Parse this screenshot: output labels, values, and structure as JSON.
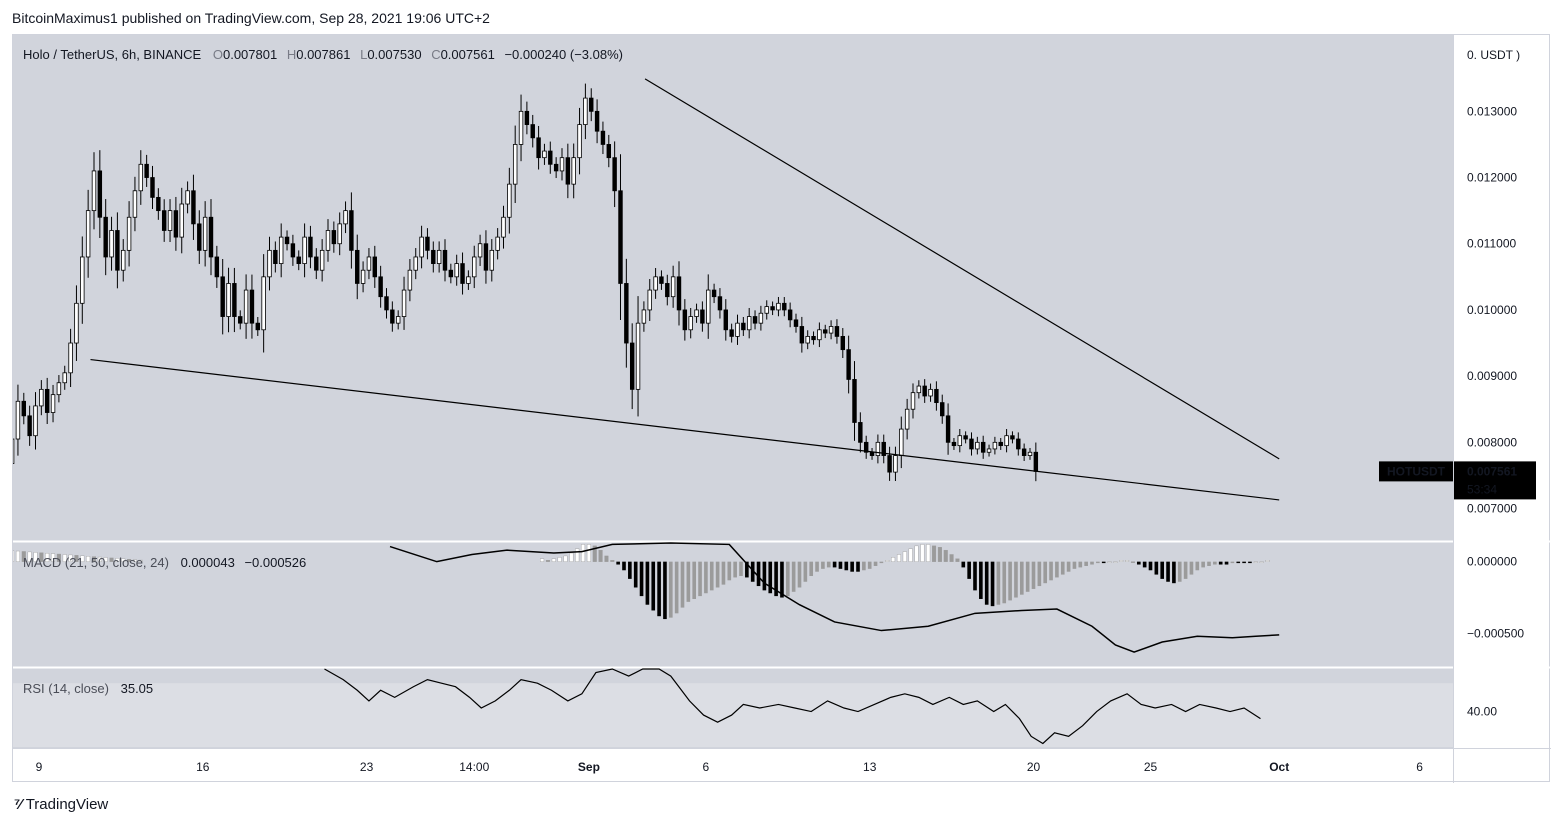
{
  "header": {
    "publisher": "BitcoinMaximus1 published on TradingView.com, Sep 28, 2021 19:06 UTC+2"
  },
  "footer": {
    "brand": "TradingView",
    "logo_icon": "tradingview-logo-icon"
  },
  "colors": {
    "pane_bg": "#d1d4dc",
    "rsi_band": "#dcdee4",
    "up_candle": "#ffffff",
    "down_candle": "#000000",
    "hist_dark": "#000000",
    "hist_light": "#9b9b9b",
    "hist_pale": "#ffffff",
    "line": "#000000",
    "badge_bg": "#000000"
  },
  "chart_data": {
    "type": "candlestick",
    "symbol_label": "Holo / TetherUS, 6h, BINANCE",
    "ohlc_legend": {
      "o_label": "O",
      "o": "0.007801",
      "h_label": "H",
      "h": "0.007861",
      "l_label": "L",
      "l": "0.007530",
      "c_label": "C",
      "c": "0.007561",
      "change": "−0.000240 (−3.08%)"
    },
    "price_axis_unit": "0. USDT )",
    "price_ticks": [
      "0.013000",
      "0.012000",
      "0.011000",
      "0.010000",
      "0.009000",
      "0.008000",
      "0.007000"
    ],
    "price_range": [
      0.0066,
      0.0137
    ],
    "current_price": {
      "ticker": "HOTUSDT",
      "value": "0.007561",
      "countdown": "53:34",
      "price": 0.007561
    },
    "x_labels": [
      "9",
      "16",
      "23",
      "14:00",
      "Sep",
      "6",
      "13",
      "20",
      "25",
      "Oct",
      "6"
    ],
    "x_label_days": [
      0,
      7,
      14,
      18.6,
      23.5,
      28.5,
      35.5,
      42.5,
      47.5,
      53,
      59
    ],
    "bars_per_day": 4,
    "first_bar_day": -1.4,
    "trendlines": [
      {
        "name": "resistance",
        "from": {
          "day": 25.9,
          "price": 0.01349
        },
        "to": {
          "day": 53,
          "price": 0.00775
        }
      },
      {
        "name": "support",
        "from": {
          "day": 2.2,
          "price": 0.00925
        },
        "to": {
          "day": 53,
          "price": 0.00713
        }
      }
    ],
    "closes": [
      0.00768,
      0.00805,
      0.00862,
      0.0084,
      0.0081,
      0.00855,
      0.0088,
      0.00845,
      0.00872,
      0.0089,
      0.00905,
      0.0095,
      0.0101,
      0.0108,
      0.0115,
      0.0121,
      0.0114,
      0.0108,
      0.0112,
      0.0106,
      0.0109,
      0.0114,
      0.0118,
      0.0122,
      0.012,
      0.0117,
      0.0115,
      0.0112,
      0.0115,
      0.0111,
      0.0116,
      0.0118,
      0.0113,
      0.0109,
      0.0114,
      0.0108,
      0.0105,
      0.0099,
      0.0104,
      0.0099,
      0.0098,
      0.0103,
      0.0098,
      0.0097,
      0.0105,
      0.0109,
      0.0107,
      0.0111,
      0.011,
      0.0108,
      0.0107,
      0.0111,
      0.0108,
      0.0106,
      0.0109,
      0.0112,
      0.011,
      0.0113,
      0.0115,
      0.0109,
      0.0104,
      0.0106,
      0.0108,
      0.0105,
      0.0102,
      0.01,
      0.0098,
      0.0099,
      0.0103,
      0.0106,
      0.0108,
      0.0111,
      0.0109,
      0.0107,
      0.0109,
      0.0106,
      0.0105,
      0.0107,
      0.0104,
      0.0105,
      0.0108,
      0.011,
      0.0106,
      0.0109,
      0.0111,
      0.0114,
      0.0119,
      0.0125,
      0.013,
      0.0128,
      0.0126,
      0.0123,
      0.0124,
      0.0122,
      0.0121,
      0.0123,
      0.0119,
      0.0123,
      0.0128,
      0.0132,
      0.013,
      0.0127,
      0.0125,
      0.0123,
      0.0118,
      0.0104,
      0.0095,
      0.0088,
      0.0098,
      0.01,
      0.0103,
      0.0105,
      0.0104,
      0.0102,
      0.0105,
      0.01,
      0.0097,
      0.0099,
      0.01,
      0.0098,
      0.0103,
      0.0102,
      0.01,
      0.0097,
      0.0096,
      0.0098,
      0.0097,
      0.0099,
      0.0098,
      0.00995,
      0.01005,
      0.01,
      0.0101,
      0.01,
      0.00985,
      0.00975,
      0.0095,
      0.0096,
      0.00955,
      0.0097,
      0.00965,
      0.00975,
      0.0096,
      0.0094,
      0.00895,
      0.0083,
      0.008,
      0.00785,
      0.0078,
      0.008,
      0.0078,
      0.00755,
      0.0078,
      0.0082,
      0.0085,
      0.00875,
      0.00885,
      0.0087,
      0.0088,
      0.0086,
      0.0084,
      0.008,
      0.00795,
      0.0081,
      0.00805,
      0.0079,
      0.008,
      0.00785,
      0.0079,
      0.008,
      0.00795,
      0.0081,
      0.00805,
      0.0079,
      0.0078,
      0.00785,
      0.00756
    ],
    "macd": {
      "label": "MACD (21, 50, close, 24)",
      "value_a": "0.000043",
      "value_b": "−0.000526",
      "axis_ticks": [
        "0.000000",
        "−0.000500"
      ],
      "axis_tick_values": [
        0,
        -0.0005
      ],
      "range": [
        -0.00072,
        0.00013
      ],
      "line_points": [
        [
          15.0,
          0.000105
        ],
        [
          17.0,
          0.0
        ],
        [
          18.5,
          5e-05
        ],
        [
          20.0,
          8e-05
        ],
        [
          22.0,
          6e-05
        ],
        [
          23.2,
          7e-05
        ],
        [
          24.5,
          0.00012
        ],
        [
          27.0,
          0.0002
        ],
        [
          29.5,
          0.00012
        ],
        [
          31.0,
          -0.00015
        ],
        [
          32.5,
          -0.0003
        ],
        [
          34.0,
          -0.00042
        ],
        [
          36.0,
          -0.00048
        ],
        [
          38.0,
          -0.00045
        ],
        [
          40.0,
          -0.00036
        ],
        [
          42.0,
          -0.00034
        ],
        [
          43.5,
          -0.00033
        ],
        [
          45.0,
          -0.00045
        ],
        [
          46.0,
          -0.00058
        ],
        [
          46.8,
          -0.00063
        ],
        [
          48.0,
          -0.00056
        ],
        [
          49.5,
          -0.00052
        ],
        [
          51.0,
          -0.00053
        ],
        [
          52.0,
          -0.00052
        ],
        [
          53.0,
          -0.00051
        ]
      ],
      "histogram": [
        2e-05,
        1e-05,
        2e-05,
        3e-05,
        4e-05,
        6e-05,
        9e-05,
        0.00012,
        0.00012,
        0.00011,
        8e-05,
        4e-05,
        1e-05,
        -2e-05,
        -6e-05,
        -0.00012,
        -0.00018,
        -0.00024,
        -0.0003,
        -0.00034,
        -0.00038,
        -0.0004,
        -0.00039,
        -0.00036,
        -0.00032,
        -0.00028,
        -0.00026,
        -0.00024,
        -0.00022,
        -0.0002,
        -0.00018,
        -0.00016,
        -0.00013,
        -0.00011,
        -0.0001,
        -0.00011,
        -0.00014,
        -0.00017,
        -0.0002,
        -0.00022,
        -0.00024,
        -0.00025,
        -0.00024,
        -0.00021,
        -0.00018,
        -0.00014,
        -0.0001,
        -7e-05,
        -5e-05,
        -4e-05,
        -4e-05,
        -5e-05,
        -6e-05,
        -7e-05,
        -7e-05,
        -6e-05,
        -5e-05,
        -3e-05,
        -1e-05,
        1e-05,
        3e-05,
        5e-05,
        7e-05,
        9e-05,
        0.00011,
        0.00012,
        0.00012,
        0.00011,
        0.0001,
        8e-05,
        5e-05,
        2e-05,
        -4e-05,
        -0.00012,
        -0.0002,
        -0.00026,
        -0.0003,
        -0.00031,
        -0.0003,
        -0.00029,
        -0.00027,
        -0.00025,
        -0.00023,
        -0.00021,
        -0.00019,
        -0.00017,
        -0.00015,
        -0.00013,
        -0.00011,
        -9e-05,
        -7e-05,
        -5e-05,
        -4e-05,
        -3e-05,
        -2e-05,
        -1e-05,
        -1e-05,
        0.0,
        0.0,
        1e-05,
        1e-05,
        0.0,
        -2e-05,
        -4e-05,
        -6e-05,
        -9e-05,
        -0.00012,
        -0.00014,
        -0.00015,
        -0.00014,
        -0.00012,
        -9e-05,
        -6e-05,
        -4e-05,
        -3e-05,
        -2e-05,
        -2e-05,
        -2e-05,
        -1e-05,
        -1e-05,
        -1e-05,
        -1e-05,
        0.0,
        0.0,
        1e-05
      ],
      "hist_first_day": 21.5
    },
    "rsi": {
      "label": "RSI (14, close)",
      "value": "35.05",
      "axis_tick": "40.00",
      "axis_tick_value": 40,
      "range": [
        30,
        52
      ],
      "band": [
        30,
        48
      ],
      "points": [
        [
          12.2,
          52
        ],
        [
          13.0,
          49
        ],
        [
          13.6,
          46
        ],
        [
          14.1,
          43
        ],
        [
          14.6,
          46
        ],
        [
          15.2,
          44
        ],
        [
          16.0,
          47
        ],
        [
          16.6,
          49
        ],
        [
          17.2,
          48
        ],
        [
          17.8,
          47
        ],
        [
          18.4,
          44
        ],
        [
          18.9,
          41
        ],
        [
          19.5,
          43
        ],
        [
          20.1,
          46
        ],
        [
          20.6,
          49
        ],
        [
          21.3,
          48
        ],
        [
          21.9,
          46
        ],
        [
          22.6,
          43
        ],
        [
          23.2,
          45
        ],
        [
          23.8,
          51
        ],
        [
          24.5,
          52
        ],
        [
          25.2,
          50
        ],
        [
          25.8,
          52
        ],
        [
          26.5,
          52
        ],
        [
          27.0,
          50
        ],
        [
          27.8,
          43
        ],
        [
          28.4,
          39
        ],
        [
          29.0,
          37
        ],
        [
          29.6,
          39
        ],
        [
          30.1,
          42
        ],
        [
          30.8,
          41
        ],
        [
          31.6,
          42
        ],
        [
          32.3,
          41
        ],
        [
          33.0,
          40
        ],
        [
          33.7,
          43
        ],
        [
          34.4,
          41
        ],
        [
          35.0,
          40
        ],
        [
          35.7,
          42
        ],
        [
          36.4,
          44
        ],
        [
          37.0,
          45
        ],
        [
          37.6,
          44
        ],
        [
          38.2,
          42
        ],
        [
          38.9,
          44
        ],
        [
          39.5,
          42
        ],
        [
          40.1,
          43
        ],
        [
          40.8,
          40
        ],
        [
          41.3,
          42
        ],
        [
          41.9,
          38
        ],
        [
          42.4,
          33
        ],
        [
          42.9,
          31
        ],
        [
          43.4,
          34
        ],
        [
          44.0,
          33
        ],
        [
          44.6,
          36
        ],
        [
          45.2,
          40
        ],
        [
          45.8,
          43
        ],
        [
          46.5,
          45
        ],
        [
          47.1,
          42
        ],
        [
          47.7,
          41
        ],
        [
          48.4,
          42
        ],
        [
          49.0,
          40
        ],
        [
          49.6,
          42
        ],
        [
          50.3,
          41
        ],
        [
          50.9,
          40
        ],
        [
          51.5,
          41
        ],
        [
          52.2,
          38
        ]
      ]
    }
  }
}
